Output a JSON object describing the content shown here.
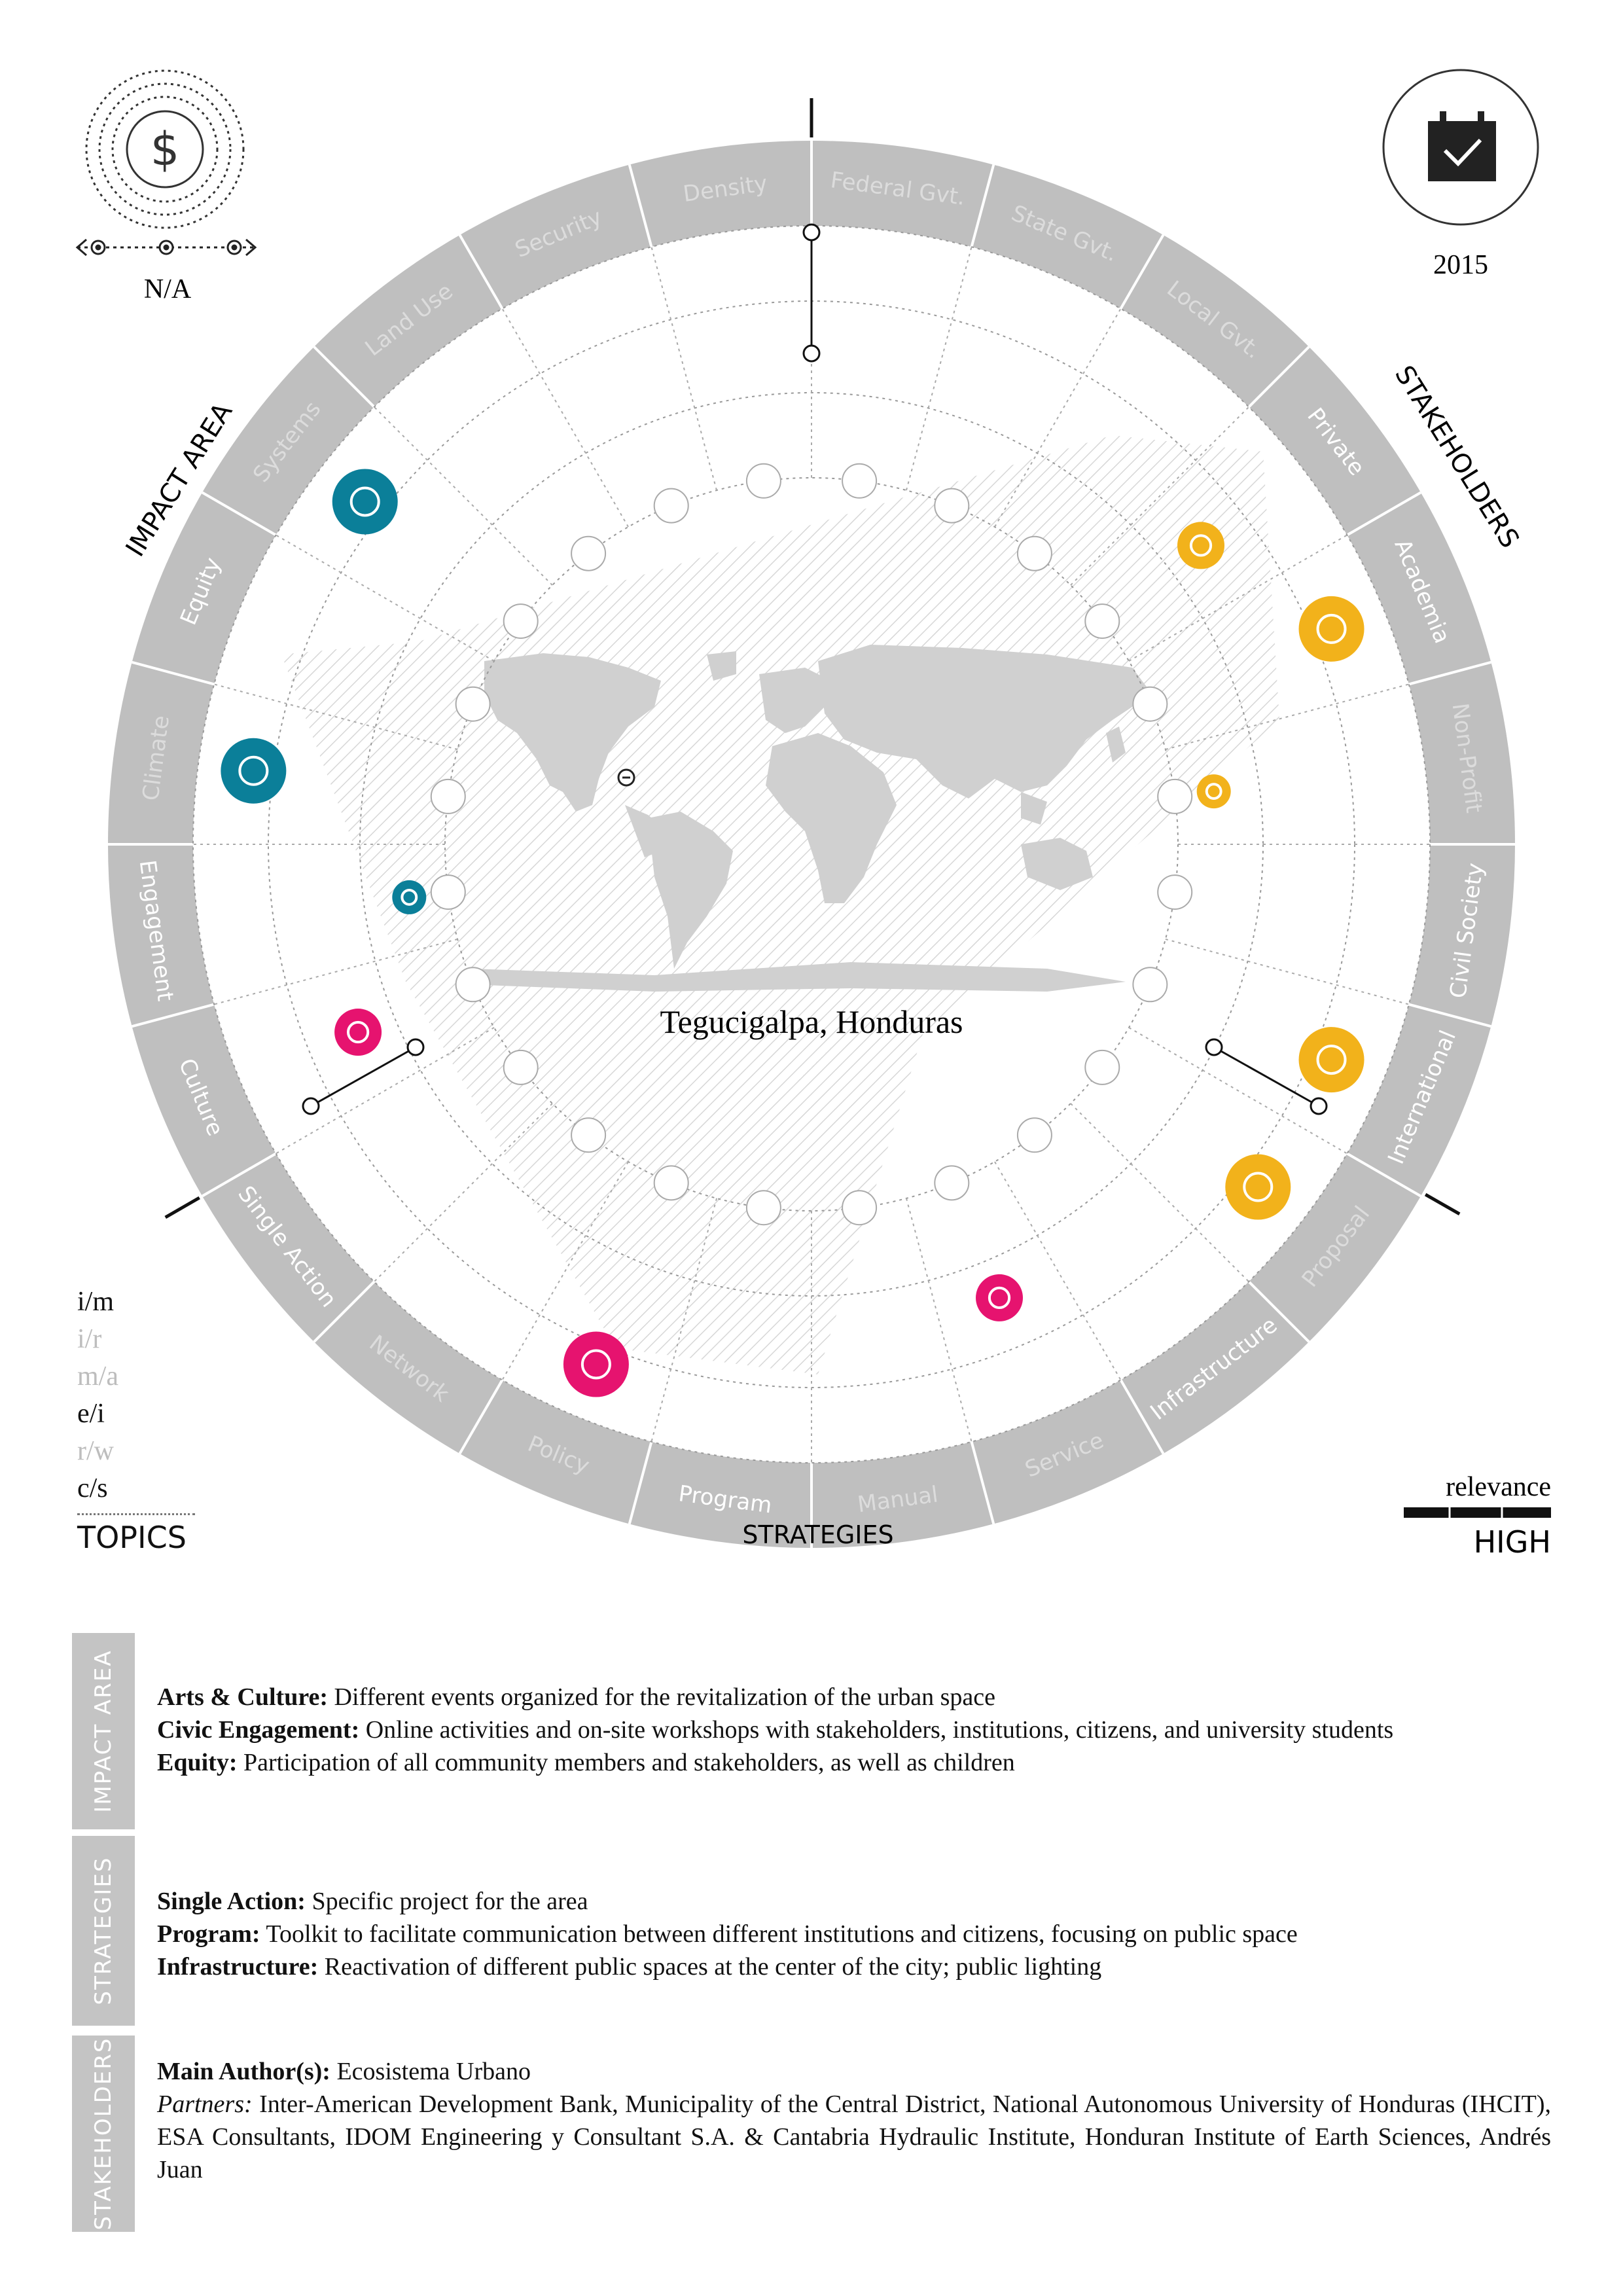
{
  "cost": {
    "icon": "dollar-coin-icon",
    "label": "N/A"
  },
  "year": {
    "icon": "calendar-check-icon",
    "label": "2015"
  },
  "wheel": {
    "group_labels": {
      "impact": "IMPACT AREA",
      "stakeholders": "STAKEHOLDERS",
      "strategies": "STRATEGIES"
    },
    "sectors": [
      {
        "label": "Federal Gvt.",
        "active": false,
        "group": "stakeholders"
      },
      {
        "label": "State Gvt.",
        "active": false,
        "group": "stakeholders"
      },
      {
        "label": "Local Gvt.",
        "active": false,
        "group": "stakeholders"
      },
      {
        "label": "Private",
        "active": true,
        "group": "stakeholders"
      },
      {
        "label": "Academia",
        "active": true,
        "group": "stakeholders"
      },
      {
        "label": "Non-Profit",
        "active": false,
        "group": "stakeholders"
      },
      {
        "label": "Civil Society",
        "active": true,
        "group": "stakeholders"
      },
      {
        "label": "International",
        "active": true,
        "group": "stakeholders"
      },
      {
        "label": "Proposal",
        "active": false,
        "group": "strategies"
      },
      {
        "label": "Infrastructure",
        "active": true,
        "group": "strategies"
      },
      {
        "label": "Service",
        "active": false,
        "group": "strategies"
      },
      {
        "label": "Manual",
        "active": false,
        "group": "strategies"
      },
      {
        "label": "Program",
        "active": true,
        "group": "strategies"
      },
      {
        "label": "Policy",
        "active": false,
        "group": "strategies"
      },
      {
        "label": "Network",
        "active": false,
        "group": "strategies"
      },
      {
        "label": "Single Action",
        "active": true,
        "group": "strategies"
      },
      {
        "label": "Culture",
        "active": true,
        "group": "impact"
      },
      {
        "label": "Engagement",
        "active": true,
        "group": "impact"
      },
      {
        "label": "Climate",
        "active": false,
        "group": "impact"
      },
      {
        "label": "Equity",
        "active": true,
        "group": "impact"
      },
      {
        "label": "Systems",
        "active": false,
        "group": "impact"
      },
      {
        "label": "Land Use",
        "active": false,
        "group": "impact"
      },
      {
        "label": "Security",
        "active": false,
        "group": "impact"
      },
      {
        "label": "Density",
        "active": false,
        "group": "impact"
      }
    ],
    "markers": [
      {
        "sector": 3,
        "icon": "handshake-icon",
        "color": "#f2b21b",
        "level": 2
      },
      {
        "sector": 4,
        "icon": "dollar-icon",
        "color": "#f2b21b",
        "level": 3
      },
      {
        "sector": 5,
        "icon": "graduation-cap-icon",
        "color": "#f2b21b",
        "level": 1
      },
      {
        "sector": 7,
        "icon": "people-icon",
        "color": "#f2b21b",
        "level": 3
      },
      {
        "sector": 8,
        "icon": "globe-icon",
        "color": "#f2b21b",
        "level": 3
      },
      {
        "sector": 10,
        "icon": "hashtag-icon",
        "color": "#e6136f",
        "level": 2
      },
      {
        "sector": 13,
        "icon": "handshake-icon",
        "color": "#e6136f",
        "level": 3
      },
      {
        "sector": 16,
        "icon": "bench-tree-icon",
        "color": "#e6136f",
        "level": 2
      },
      {
        "sector": 17,
        "icon": "wrench-icon",
        "color": "#0b7f99",
        "level": 1
      },
      {
        "sector": 18,
        "icon": "snowflake-icon",
        "color": "#0b7f99",
        "level": 3
      },
      {
        "sector": 20,
        "icon": "equals-icon",
        "color": "#0b7f99",
        "level": 3
      }
    ],
    "location": "Tegucigalpa, Honduras"
  },
  "topics": {
    "items": [
      {
        "label": "i/m",
        "active": true
      },
      {
        "label": "i/r",
        "active": false
      },
      {
        "label": "m/a",
        "active": false
      },
      {
        "label": "e/i",
        "active": true
      },
      {
        "label": "r/w",
        "active": false
      },
      {
        "label": "c/s",
        "active": true
      }
    ],
    "title": "TOPICS"
  },
  "relevance": {
    "label": "relevance",
    "value": "HIGH",
    "level_fraction": 1.0
  },
  "details": {
    "impact": {
      "tab": "IMPACT AREA",
      "rows": [
        {
          "term": "Arts & Culture:",
          "text": " Different events organized for the revitalization of the urban space"
        },
        {
          "term": "Civic Engagement:",
          "text": " Online activities and on-site workshops with stakeholders, institutions, citizens, and university students"
        },
        {
          "term": "Equity:",
          "text": " Participation of all community members and stakeholders, as well as children"
        }
      ]
    },
    "strategies": {
      "tab": "STRATEGIES",
      "rows": [
        {
          "term": "Single Action:",
          "text": " Specific project for the area"
        },
        {
          "term": "Program:",
          "text": " Toolkit to facilitate communication between different institutions and citizens, focusing on public space"
        },
        {
          "term": "Infrastructure:",
          "text": " Reactivation of different public spaces at the center of the city; public lighting"
        }
      ]
    },
    "stakeholders": {
      "tab": "STAKEHOLDERS",
      "author_term": "Main Author(s):",
      "author_text": " Ecosistema Urbano",
      "partners_term": "Partners:",
      "partners_text": " Inter-American Development Bank, Municipality of the Central District, National Autonomous University of Honduras (IHCIT), ESA Consultants, IDOM Engineering y Consultant S.A. & Cantabria Hydraulic Institute, Honduran Institute of Earth Sciences, Andrés Juan"
    }
  }
}
